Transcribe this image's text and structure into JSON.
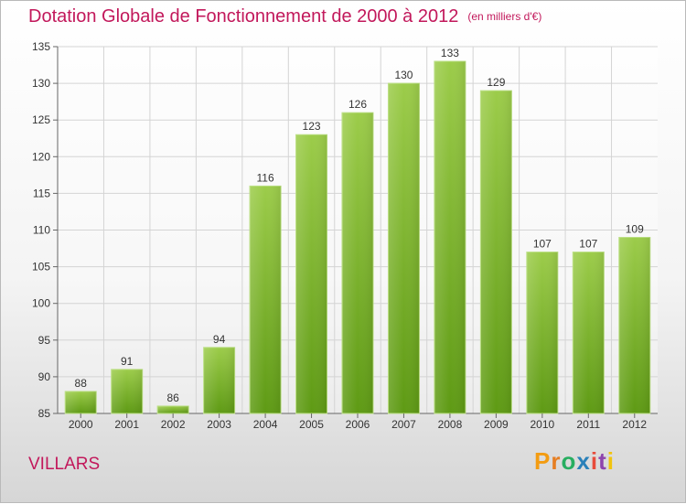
{
  "title": "Dotation Globale de Fonctionnement de 2000 à 2012",
  "unit": "(en milliers d'€)",
  "commune": "VILLARS",
  "logo": {
    "letters": [
      "P",
      "r",
      "o",
      "x",
      "i",
      "t",
      "i"
    ],
    "colors": [
      "#f39c12",
      "#e67e22",
      "#27ae60",
      "#2980b9",
      "#e74c3c",
      "#8e44ad",
      "#f1c40f"
    ]
  },
  "colors": {
    "bar_light": "#9ccc4a",
    "bar_dark": "#5e9a14",
    "title": "#c2185b",
    "grid": "#d4d4d4"
  },
  "chart_data": {
    "type": "bar",
    "title": "Dotation Globale de Fonctionnement de 2000 à 2012",
    "xlabel": "",
    "ylabel": "",
    "categories": [
      "2000",
      "2001",
      "2002",
      "2003",
      "2004",
      "2005",
      "2006",
      "2007",
      "2008",
      "2009",
      "2010",
      "2011",
      "2012"
    ],
    "values": [
      88,
      91,
      86,
      94,
      116,
      123,
      126,
      130,
      133,
      129,
      107,
      107,
      109
    ],
    "ylim": [
      85,
      135
    ],
    "yticks": [
      85,
      90,
      95,
      100,
      105,
      110,
      115,
      120,
      125,
      130,
      135
    ],
    "grid": true
  }
}
